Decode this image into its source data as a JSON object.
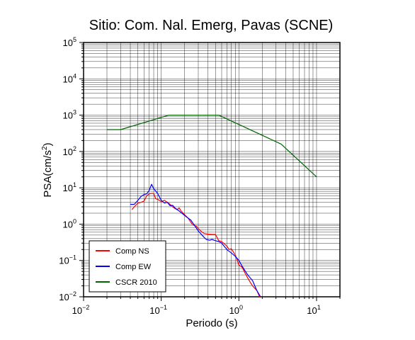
{
  "chart_data": {
    "type": "line",
    "title": "Sitio: Com. Nal. Emerg, Pavas (SCNE)",
    "xlabel": "Periodo (s)",
    "ylabel_main": "PSA(cm/s",
    "ylabel_sup": "2",
    "ylabel_end": ")",
    "x_scale": "log",
    "y_scale": "log",
    "xlim": [
      0.01,
      20
    ],
    "ylim": [
      0.01,
      100000
    ],
    "grid": true,
    "legend_position": "bottom-left",
    "x_ticks": [
      {
        "base": "10",
        "exp": "−2",
        "value": 0.01
      },
      {
        "base": "10",
        "exp": "−1",
        "value": 0.1
      },
      {
        "base": "10",
        "exp": "0",
        "value": 1
      },
      {
        "base": "10",
        "exp": "1",
        "value": 10
      }
    ],
    "y_ticks": [
      {
        "base": "10",
        "exp": "−2",
        "value": 0.01
      },
      {
        "base": "10",
        "exp": "−1",
        "value": 0.1
      },
      {
        "base": "10",
        "exp": "0",
        "value": 1
      },
      {
        "base": "10",
        "exp": "1",
        "value": 10
      },
      {
        "base": "10",
        "exp": "2",
        "value": 100
      },
      {
        "base": "10",
        "exp": "3",
        "value": 1000
      },
      {
        "base": "10",
        "exp": "4",
        "value": 10000
      },
      {
        "base": "10",
        "exp": "5",
        "value": 100000
      }
    ],
    "series": [
      {
        "name": "Comp NS",
        "color": "#ff0000",
        "points": [
          [
            0.042,
            2.5
          ],
          [
            0.045,
            3.0
          ],
          [
            0.05,
            3.8
          ],
          [
            0.055,
            4.0
          ],
          [
            0.06,
            4.3
          ],
          [
            0.065,
            6.0
          ],
          [
            0.07,
            6.8
          ],
          [
            0.075,
            7.0
          ],
          [
            0.08,
            7.0
          ],
          [
            0.085,
            5.0
          ],
          [
            0.09,
            4.8
          ],
          [
            0.1,
            4.2
          ],
          [
            0.11,
            4.5
          ],
          [
            0.12,
            4.0
          ],
          [
            0.13,
            3.5
          ],
          [
            0.14,
            3.0
          ],
          [
            0.15,
            2.7
          ],
          [
            0.16,
            2.5
          ],
          [
            0.17,
            2.8
          ],
          [
            0.18,
            2.3
          ],
          [
            0.2,
            1.8
          ],
          [
            0.22,
            1.5
          ],
          [
            0.25,
            1.0
          ],
          [
            0.28,
            0.9
          ],
          [
            0.3,
            0.75
          ],
          [
            0.33,
            0.62
          ],
          [
            0.36,
            0.55
          ],
          [
            0.4,
            0.53
          ],
          [
            0.45,
            0.52
          ],
          [
            0.5,
            0.52
          ],
          [
            0.55,
            0.35
          ],
          [
            0.6,
            0.33
          ],
          [
            0.7,
            0.25
          ],
          [
            0.75,
            0.2
          ],
          [
            0.8,
            0.21
          ],
          [
            0.9,
            0.14
          ],
          [
            1.0,
            0.075
          ],
          [
            1.1,
            0.065
          ],
          [
            1.2,
            0.045
          ],
          [
            1.3,
            0.033
          ],
          [
            1.4,
            0.025
          ],
          [
            1.5,
            0.02
          ],
          [
            1.7,
            0.015
          ],
          [
            1.85,
            0.01
          ]
        ]
      },
      {
        "name": "Comp EW",
        "color": "#0000ff",
        "points": [
          [
            0.04,
            3.5
          ],
          [
            0.045,
            3.5
          ],
          [
            0.05,
            4.5
          ],
          [
            0.055,
            5.8
          ],
          [
            0.06,
            6.5
          ],
          [
            0.065,
            6.8
          ],
          [
            0.07,
            8.5
          ],
          [
            0.075,
            12.5
          ],
          [
            0.08,
            9.5
          ],
          [
            0.09,
            7.0
          ],
          [
            0.1,
            4.5
          ],
          [
            0.11,
            3.8
          ],
          [
            0.12,
            4.0
          ],
          [
            0.13,
            3.2
          ],
          [
            0.14,
            3.3
          ],
          [
            0.15,
            2.8
          ],
          [
            0.17,
            2.3
          ],
          [
            0.19,
            1.9
          ],
          [
            0.21,
            1.6
          ],
          [
            0.24,
            1.3
          ],
          [
            0.27,
            0.9
          ],
          [
            0.3,
            0.65
          ],
          [
            0.35,
            0.45
          ],
          [
            0.38,
            0.38
          ],
          [
            0.42,
            0.36
          ],
          [
            0.45,
            0.38
          ],
          [
            0.5,
            0.35
          ],
          [
            0.55,
            0.33
          ],
          [
            0.6,
            0.3
          ],
          [
            0.7,
            0.2
          ],
          [
            0.8,
            0.16
          ],
          [
            0.9,
            0.13
          ],
          [
            1.0,
            0.1
          ],
          [
            1.1,
            0.07
          ],
          [
            1.2,
            0.052
          ],
          [
            1.3,
            0.04
          ],
          [
            1.5,
            0.028
          ],
          [
            1.7,
            0.015
          ],
          [
            1.9,
            0.01
          ]
        ]
      },
      {
        "name": "CSCR 2010",
        "color": "#006400",
        "points": [
          [
            0.02,
            400
          ],
          [
            0.03,
            400
          ],
          [
            0.125,
            1000
          ],
          [
            0.55,
            1000
          ],
          [
            3.5,
            160
          ],
          [
            10,
            20
          ]
        ]
      }
    ]
  }
}
